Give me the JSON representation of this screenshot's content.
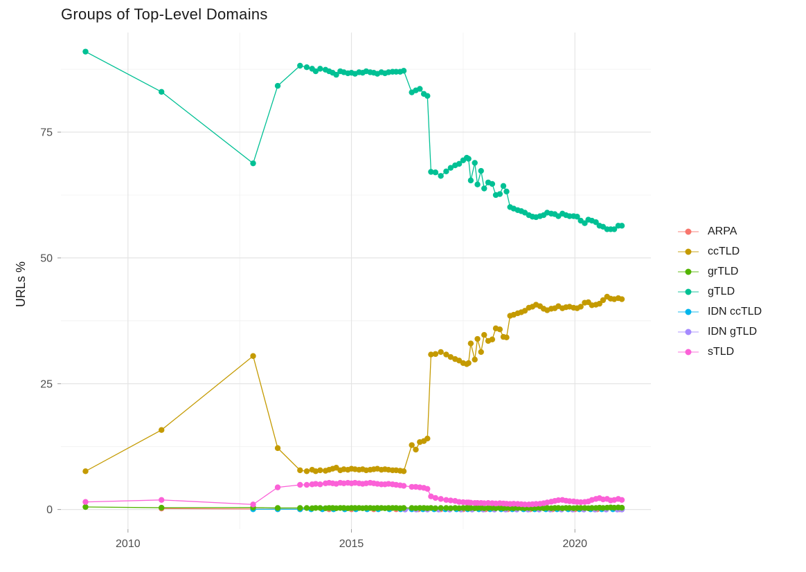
{
  "header": {
    "title": "Groups of Top-Level Domains"
  },
  "chart_data": {
    "type": "line",
    "title": "Groups of Top-Level Domains",
    "xlabel": "",
    "ylabel": "URLs %",
    "grid": true,
    "legend_position": "right",
    "x_domain": [
      2008.5,
      2021.7
    ],
    "y_domain": [
      -3.9,
      94.8
    ],
    "x_ticks": [
      2010,
      2015,
      2020
    ],
    "x_tick_labels": [
      "2010",
      "2015",
      "2020"
    ],
    "x_minor": [
      2012.5,
      2017.5
    ],
    "y_ticks": [
      0,
      25,
      50,
      75
    ],
    "y_tick_labels": [
      "0",
      "25",
      "50",
      "75"
    ],
    "y_minor": [
      12.5,
      37.5,
      62.5,
      87.5
    ],
    "x_common": [
      2009.05,
      2010.75,
      2012.8,
      2013.35,
      2013.85,
      2014.0,
      2014.12,
      2014.2,
      2014.3,
      2014.42,
      2014.5,
      2014.58,
      2014.66,
      2014.75,
      2014.83,
      2014.92,
      2015.0,
      2015.08,
      2015.17,
      2015.25,
      2015.33,
      2015.42,
      2015.5,
      2015.58,
      2015.67,
      2015.75,
      2015.83,
      2015.92,
      2016.0,
      2016.09,
      2016.17,
      2016.35,
      2016.44,
      2016.53,
      2016.62,
      2016.7,
      2016.78,
      2016.88,
      2017.0,
      2017.12,
      2017.22,
      2017.32,
      2017.41,
      2017.5,
      2017.58,
      2017.62,
      2017.67,
      2017.76,
      2017.82,
      2017.9,
      2017.97,
      2018.06,
      2018.15,
      2018.23,
      2018.32,
      2018.4,
      2018.47,
      2018.55,
      2018.63,
      2018.72,
      2018.8,
      2018.88,
      2018.97,
      2019.05,
      2019.13,
      2019.22,
      2019.3,
      2019.38,
      2019.47,
      2019.55,
      2019.63,
      2019.72,
      2019.8,
      2019.88,
      2019.97,
      2020.05,
      2020.13,
      2020.22,
      2020.3,
      2020.38,
      2020.47,
      2020.55,
      2020.63,
      2020.72,
      2020.8,
      2020.88,
      2020.97,
      2021.05
    ],
    "series": [
      {
        "name": "ARPA",
        "color": "#F8766D",
        "z": 0,
        "x": [
          2010.75,
          2012.8,
          2013.35,
          2013.85,
          2014.5,
          2015.0,
          2015.5,
          2016.0,
          2016.5,
          2017.0,
          2017.5,
          2018.0,
          2018.5,
          2019.0,
          2019.5,
          2020.0,
          2020.5,
          2021.0
        ],
        "y": [
          0.2,
          0.1,
          0.08,
          0.05,
          0.05,
          0.05,
          0.05,
          0.05,
          0.05,
          0.05,
          0.05,
          0.05,
          0.05,
          0.05,
          0.05,
          0.05,
          0.05,
          0.05
        ]
      },
      {
        "name": "ccTLD",
        "color": "#C49A00",
        "z": 4,
        "x": "common",
        "y": [
          7.6,
          15.8,
          30.5,
          12.2,
          7.8,
          7.6,
          7.9,
          7.6,
          7.8,
          7.7,
          7.9,
          8.1,
          8.3,
          7.8,
          8.0,
          7.9,
          8.1,
          8.0,
          7.9,
          8.0,
          7.8,
          7.9,
          8.0,
          8.1,
          7.9,
          8.0,
          7.9,
          7.8,
          7.8,
          7.7,
          7.6,
          12.8,
          11.9,
          13.4,
          13.6,
          14.1,
          30.8,
          30.9,
          31.3,
          30.8,
          30.3,
          29.9,
          29.6,
          29.1,
          28.9,
          29.1,
          33.0,
          29.8,
          33.9,
          31.3,
          34.7,
          33.5,
          33.8,
          36.0,
          35.8,
          34.3,
          34.2,
          38.5,
          38.7,
          39.0,
          39.2,
          39.5,
          40.1,
          40.3,
          40.7,
          40.4,
          39.9,
          39.6,
          39.9,
          40.0,
          40.4,
          40.0,
          40.2,
          40.3,
          40.1,
          40.0,
          40.3,
          41.1,
          41.2,
          40.6,
          40.7,
          40.9,
          41.6,
          42.3,
          41.9,
          41.8,
          42.0,
          41.8
        ]
      },
      {
        "name": "grTLD",
        "color": "#53B400",
        "z": 3,
        "x": "common",
        "y": [
          0.5,
          0.35,
          0.4,
          0.3,
          0.3,
          0.3,
          0.25,
          0.3,
          0.3,
          0.25,
          0.3,
          0.3,
          0.25,
          0.3,
          0.3,
          0.25,
          0.3,
          0.3,
          0.3,
          0.25,
          0.3,
          0.3,
          0.25,
          0.3,
          0.3,
          0.25,
          0.3,
          0.3,
          0.3,
          0.25,
          0.3,
          0.3,
          0.25,
          0.3,
          0.3,
          0.25,
          0.3,
          0.25,
          0.3,
          0.3,
          0.25,
          0.3,
          0.25,
          0.3,
          0.3,
          0.25,
          0.3,
          0.25,
          0.3,
          0.3,
          0.25,
          0.3,
          0.3,
          0.25,
          0.3,
          0.25,
          0.3,
          0.3,
          0.25,
          0.3,
          0.3,
          0.25,
          0.3,
          0.25,
          0.3,
          0.3,
          0.25,
          0.3,
          0.25,
          0.3,
          0.3,
          0.25,
          0.3,
          0.3,
          0.25,
          0.3,
          0.3,
          0.3,
          0.25,
          0.3,
          0.3,
          0.35,
          0.3,
          0.35,
          0.4,
          0.35,
          0.4,
          0.35
        ]
      },
      {
        "name": "gTLD",
        "color": "#00C094",
        "z": 5,
        "x": "common",
        "y": [
          91.0,
          83.0,
          68.8,
          84.2,
          88.2,
          87.9,
          87.6,
          87.1,
          87.6,
          87.4,
          87.1,
          86.8,
          86.4,
          87.1,
          86.9,
          86.7,
          86.8,
          86.6,
          86.9,
          86.8,
          87.1,
          86.9,
          86.8,
          86.6,
          86.9,
          86.7,
          86.9,
          87.0,
          87.0,
          87.0,
          87.2,
          82.9,
          83.3,
          83.6,
          82.6,
          82.2,
          67.1,
          67.0,
          66.3,
          67.2,
          67.9,
          68.4,
          68.7,
          69.4,
          69.9,
          69.7,
          65.4,
          68.9,
          64.6,
          67.3,
          63.8,
          65.0,
          64.7,
          62.5,
          62.7,
          64.3,
          63.2,
          60.1,
          59.8,
          59.5,
          59.3,
          59.0,
          58.5,
          58.2,
          58.1,
          58.3,
          58.5,
          59.0,
          58.8,
          58.7,
          58.3,
          58.8,
          58.5,
          58.3,
          58.3,
          58.2,
          57.4,
          56.9,
          57.6,
          57.4,
          57.1,
          56.4,
          56.2,
          55.7,
          55.7,
          55.7,
          56.4,
          56.4
        ]
      },
      {
        "name": "IDN ccTLD",
        "color": "#00B6EB",
        "z": 1,
        "x": [
          2012.8,
          2013.35,
          2013.85,
          2014.1,
          2014.35,
          2014.6,
          2014.85,
          2015.1,
          2015.35,
          2015.6,
          2015.85,
          2016.1,
          2016.35,
          2016.6,
          2016.85,
          2017.1,
          2017.35,
          2017.6,
          2017.85,
          2018.1,
          2018.35,
          2018.6,
          2018.85,
          2019.1,
          2019.35,
          2019.6,
          2019.85,
          2020.1,
          2020.35,
          2020.6,
          2020.85,
          2021.05
        ],
        "y": [
          0.05,
          0.05,
          0.05,
          0.05,
          0.05,
          0.05,
          0.05,
          0.05,
          0.05,
          0.05,
          0.05,
          0.05,
          0.05,
          0.05,
          0.05,
          0.05,
          0.05,
          0.05,
          0.05,
          0.05,
          0.05,
          0.05,
          0.05,
          0.05,
          0.05,
          0.05,
          0.05,
          0.05,
          0.05,
          0.05,
          0.05,
          0.1
        ]
      },
      {
        "name": "IDN gTLD",
        "color": "#A58AFF",
        "z": 2,
        "x": [
          2016.2,
          2016.45,
          2016.7,
          2016.95,
          2017.2,
          2017.45,
          2017.7,
          2017.95,
          2018.2,
          2018.45,
          2018.7,
          2018.95,
          2019.2,
          2019.45,
          2019.7,
          2019.95,
          2020.2,
          2020.45,
          2020.7,
          2020.95,
          2021.05
        ],
        "y": [
          0.0,
          0.0,
          0.0,
          0.0,
          0.0,
          0.0,
          0.0,
          0.0,
          0.0,
          0.0,
          0.0,
          0.0,
          0.0,
          0.0,
          0.0,
          0.0,
          0.0,
          0.0,
          0.0,
          0.0,
          0.0
        ]
      },
      {
        "name": "sTLD",
        "color": "#FB61D7",
        "z": 6,
        "x": "common",
        "y": [
          1.5,
          1.9,
          1.0,
          4.4,
          4.9,
          4.9,
          5.0,
          5.1,
          5.0,
          5.2,
          5.3,
          5.2,
          5.1,
          5.3,
          5.2,
          5.3,
          5.2,
          5.3,
          5.2,
          5.1,
          5.2,
          5.3,
          5.2,
          5.1,
          5.0,
          5.0,
          5.1,
          5.0,
          4.9,
          4.8,
          4.7,
          4.5,
          4.5,
          4.4,
          4.3,
          4.1,
          2.6,
          2.3,
          2.1,
          1.9,
          1.8,
          1.7,
          1.5,
          1.45,
          1.4,
          1.4,
          1.35,
          1.3,
          1.3,
          1.3,
          1.25,
          1.3,
          1.25,
          1.2,
          1.25,
          1.2,
          1.15,
          1.1,
          1.15,
          1.1,
          1.05,
          1.0,
          1.0,
          1.05,
          1.1,
          1.15,
          1.25,
          1.4,
          1.55,
          1.7,
          1.85,
          1.9,
          1.75,
          1.65,
          1.6,
          1.5,
          1.45,
          1.5,
          1.6,
          1.9,
          2.1,
          2.25,
          2.0,
          2.1,
          1.8,
          1.9,
          2.1,
          1.9
        ]
      }
    ]
  }
}
